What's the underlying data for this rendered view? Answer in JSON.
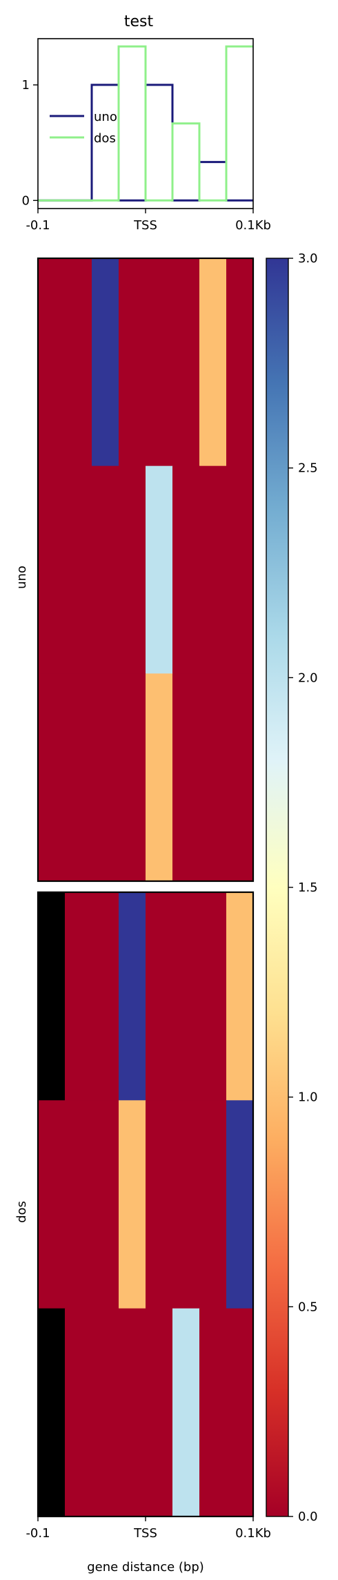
{
  "chart_data": [
    {
      "type": "line",
      "title": "test",
      "x": [
        0,
        1,
        2,
        3,
        4,
        5,
        6,
        7
      ],
      "xtick_labels": [
        "-0.1",
        "TSS",
        "0.1Kb"
      ],
      "yticks": [
        0,
        1
      ],
      "ylim": [
        -0.07,
        1.4
      ],
      "series": [
        {
          "name": "uno",
          "color": "#1a1a7a",
          "values": [
            0,
            0,
            1,
            0,
            1,
            0,
            0.333,
            0
          ]
        },
        {
          "name": "dos",
          "color": "#8ff08a",
          "values": [
            0,
            0,
            0,
            1.333,
            0,
            0.667,
            0,
            1.333
          ]
        }
      ],
      "legend": "center-left"
    },
    {
      "type": "heatmap",
      "ylabel": "uno",
      "columns": 8,
      "rows": [
        [
          0,
          0,
          3,
          0,
          0,
          0,
          1,
          0
        ],
        [
          0,
          0,
          0,
          0,
          2,
          0,
          0,
          0
        ],
        [
          0,
          0,
          0,
          0,
          1,
          0,
          0,
          0
        ]
      ],
      "xtick_labels": [
        "-0.1",
        "TSS",
        "0.1Kb"
      ]
    },
    {
      "type": "heatmap",
      "ylabel": "dos",
      "xlabel": "gene distance (bp)",
      "columns": 8,
      "rows": [
        [
          null,
          0,
          0,
          3,
          0,
          0,
          0,
          1
        ],
        [
          0,
          0,
          0,
          1,
          0,
          0,
          0,
          3
        ],
        [
          null,
          0,
          0,
          0,
          0,
          2,
          0,
          0
        ]
      ],
      "xtick_labels": [
        "-0.1",
        "TSS",
        "0.1Kb"
      ],
      "nan_color": "#000000"
    },
    {
      "type": "colorbar",
      "colormap": "RdYlBu",
      "range": [
        0,
        3
      ],
      "tick_labels": [
        "0.0",
        "0.5",
        "1.0",
        "1.5",
        "2.0",
        "2.5",
        "3.0"
      ]
    }
  ]
}
